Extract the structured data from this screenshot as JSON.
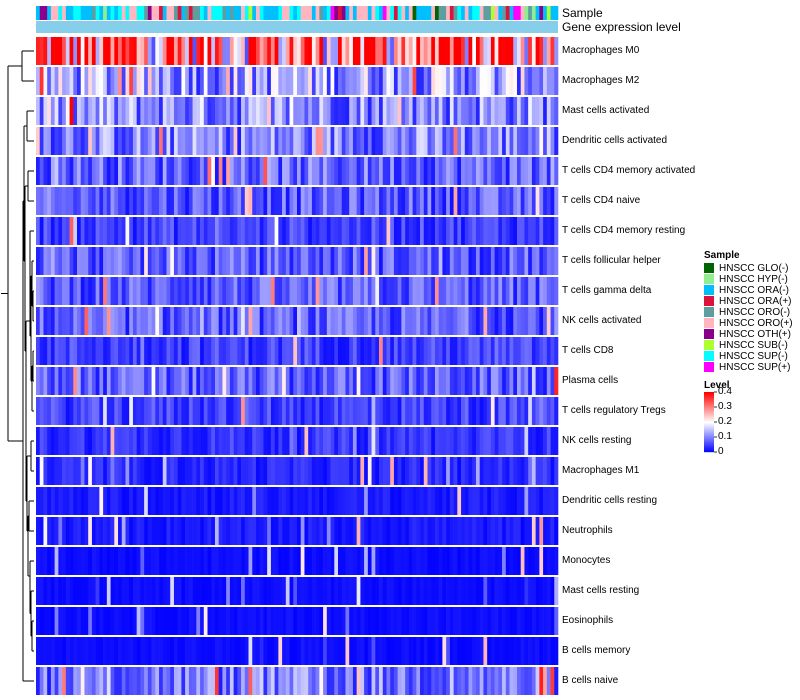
{
  "chart_data": {
    "type": "heatmap",
    "title": "",
    "annotation_tracks": [
      "Sample",
      "Gene expression level"
    ],
    "rows": [
      "Macrophages M0",
      "Macrophages M2",
      "Mast cells activated",
      "Dendritic cells activated",
      "T cells CD4 memory activated",
      "T cells CD4 naive",
      "T cells CD4 memory resting",
      "T cells follicular helper",
      "T cells gamma delta",
      "NK cells activated",
      "T cells CD8",
      "Plasma cells",
      "T cells regulatory  Tregs",
      "NK cells resting",
      "Macrophages M1",
      "Dendritic cells resting",
      "Neutrophils",
      "Monocytes",
      "Mast cells resting",
      "Eosinophils",
      "B cells memory",
      "B cells naive"
    ],
    "row_mean_levels": [
      0.3,
      0.13,
      0.11,
      0.1,
      0.08,
      0.07,
      0.05,
      0.07,
      0.07,
      0.07,
      0.05,
      0.07,
      0.05,
      0.04,
      0.03,
      0.02,
      0.02,
      0.01,
      0.01,
      0.01,
      0.01,
      0.09
    ],
    "sample_legend": {
      "title": "Sample",
      "entries": [
        {
          "label": "HNSCC GLO(-)",
          "color": "#006400"
        },
        {
          "label": "HNSCC HYP(-)",
          "color": "#90EE90"
        },
        {
          "label": "HNSCC ORA(-)",
          "color": "#00BFFF"
        },
        {
          "label": "HNSCC ORA(+)",
          "color": "#DC143C"
        },
        {
          "label": "HNSCC ORO(-)",
          "color": "#5F9EA0"
        },
        {
          "label": "HNSCC ORO(+)",
          "color": "#FFB6C1"
        },
        {
          "label": "HNSCC OTH(+)",
          "color": "#8B008B"
        },
        {
          "label": "HNSCC SUB(-)",
          "color": "#ADFF2F"
        },
        {
          "label": "HNSCC SUP(-)",
          "color": "#00FFFF"
        },
        {
          "label": "HNSCC SUP(+)",
          "color": "#FF00FF"
        }
      ]
    },
    "level_legend": {
      "title": "Level",
      "ticks": [
        0.4,
        0.3,
        0.2,
        0.1,
        0
      ],
      "tick_labels": [
        "0.4",
        "0.3",
        "0.2",
        "0.1",
        "0"
      ],
      "range": [
        0,
        0.4
      ],
      "colors": [
        "#0000FF",
        "#FFFFFF",
        "#FF0000"
      ]
    },
    "gene_expression_level_color": "#87CEEB",
    "columns": 140
  }
}
